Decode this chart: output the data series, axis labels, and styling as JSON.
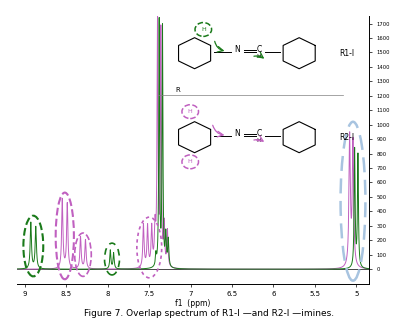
{
  "xlim": [
    9.1,
    4.85
  ],
  "ylim": [
    -100,
    1750
  ],
  "xticks": [
    9.0,
    8.5,
    8.0,
    7.5,
    7.0,
    6.5,
    6.0,
    5.5,
    5.0
  ],
  "yticks_right": [
    0,
    100,
    200,
    300,
    400,
    500,
    600,
    700,
    800,
    900,
    1000,
    1100,
    1200,
    1300,
    1400,
    1500,
    1600,
    1700
  ],
  "green_color": "#1a7a1a",
  "purple_color": "#c060c0",
  "blue_oval_color": "#a8c4e0",
  "background": "#ffffff",
  "xlabel": "f1  (ppm)"
}
